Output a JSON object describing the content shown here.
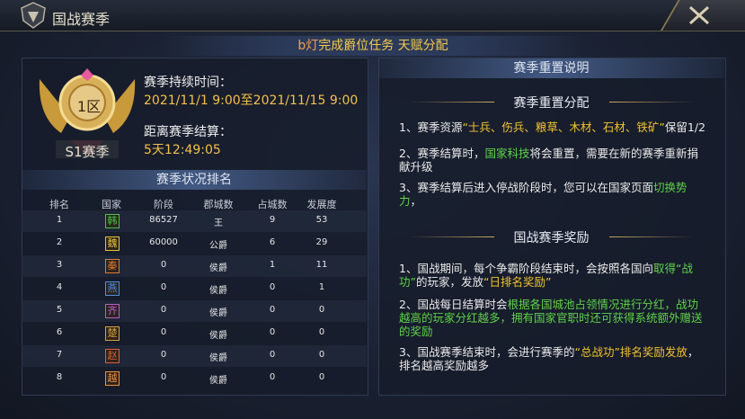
{
  "header": {
    "title": "国战赛季"
  },
  "banner": {
    "prefix": "b灯",
    "text": "完成爵位任务 天赋分配"
  },
  "season": {
    "zone": "1区",
    "name": "S1赛季",
    "duration_label": "赛季持续时间：",
    "duration": "2021/11/1 9:00至2021/11/15 9:00",
    "countdown_label": "距离赛季结算：",
    "countdown": "5天12:49:05"
  },
  "ranking": {
    "title": "赛季状况排名",
    "columns": [
      "排名",
      "国家",
      "阶段",
      "郡城数",
      "占城数",
      "发展度"
    ],
    "rows": [
      [
        "1",
        "韩",
        "86527",
        "王",
        "9",
        "53"
      ],
      [
        "2",
        "魏",
        "60000",
        "公爵",
        "6",
        "29"
      ],
      [
        "3",
        "秦",
        "0",
        "侯爵",
        "1",
        "11"
      ],
      [
        "4",
        "燕",
        "0",
        "侯爵",
        "0",
        "1"
      ],
      [
        "5",
        "齐",
        "0",
        "侯爵",
        "0",
        "0"
      ],
      [
        "6",
        "楚",
        "0",
        "侯爵",
        "0",
        "0"
      ],
      [
        "7",
        "赵",
        "0",
        "侯爵",
        "0",
        "0"
      ],
      [
        "8",
        "越",
        "0",
        "侯爵",
        "0",
        "0"
      ]
    ]
  },
  "panel": {
    "title": "赛季重置说明"
  },
  "sections": [
    {
      "title": "赛季重置分配",
      "items": [
        [
          {
            "text": "1、赛季资源",
            "color": "white"
          },
          {
            "text": "“士兵、伤兵、粮草、木材、石材、铁矿”",
            "color": "yellow"
          },
          {
            "text": "保留1/2",
            "color": "white"
          }
        ],
        [
          {
            "text": "2、赛季结算时，",
            "color": "white"
          },
          {
            "text": "国家科技",
            "color": "green"
          },
          {
            "text": "将会重置，需要在新的赛季重新捐献升级",
            "color": "white"
          }
        ],
        [
          {
            "text": "3、赛季结算后进入停战阶段时，您可以在国家页面",
            "color": "white"
          },
          {
            "text": "切换势力",
            "color": "green"
          },
          {
            "text": "，",
            "color": "white"
          }
        ]
      ]
    },
    {
      "title": "国战赛季奖励",
      "items": [
        [
          {
            "text": "1、国战期间，每个争霸阶段结束时，会按照各国向",
            "color": "white"
          },
          {
            "text": "取得“战功”",
            "color": "green"
          },
          {
            "text": "的玩家，发放",
            "color": "white"
          },
          {
            "text": "“日排名奖励”",
            "color": "yellow"
          }
        ],
        [
          {
            "text": "2、国战每日结算时会",
            "color": "white"
          },
          {
            "text": "根据各国城池占领情况进行分红，",
            "color": "green"
          },
          {
            "text": "战功越高的玩家分红越多，拥有国家官职时还可获得系统额外赠送的奖励",
            "color": "green"
          }
        ],
        [
          {
            "text": "3、国战赛季结束时，会进行赛季的",
            "color": "white"
          },
          {
            "text": "“总战功”排名奖励发放",
            "color": "yellow"
          },
          {
            "text": "，排名越高奖励越多",
            "color": "white"
          }
        ]
      ]
    }
  ]
}
